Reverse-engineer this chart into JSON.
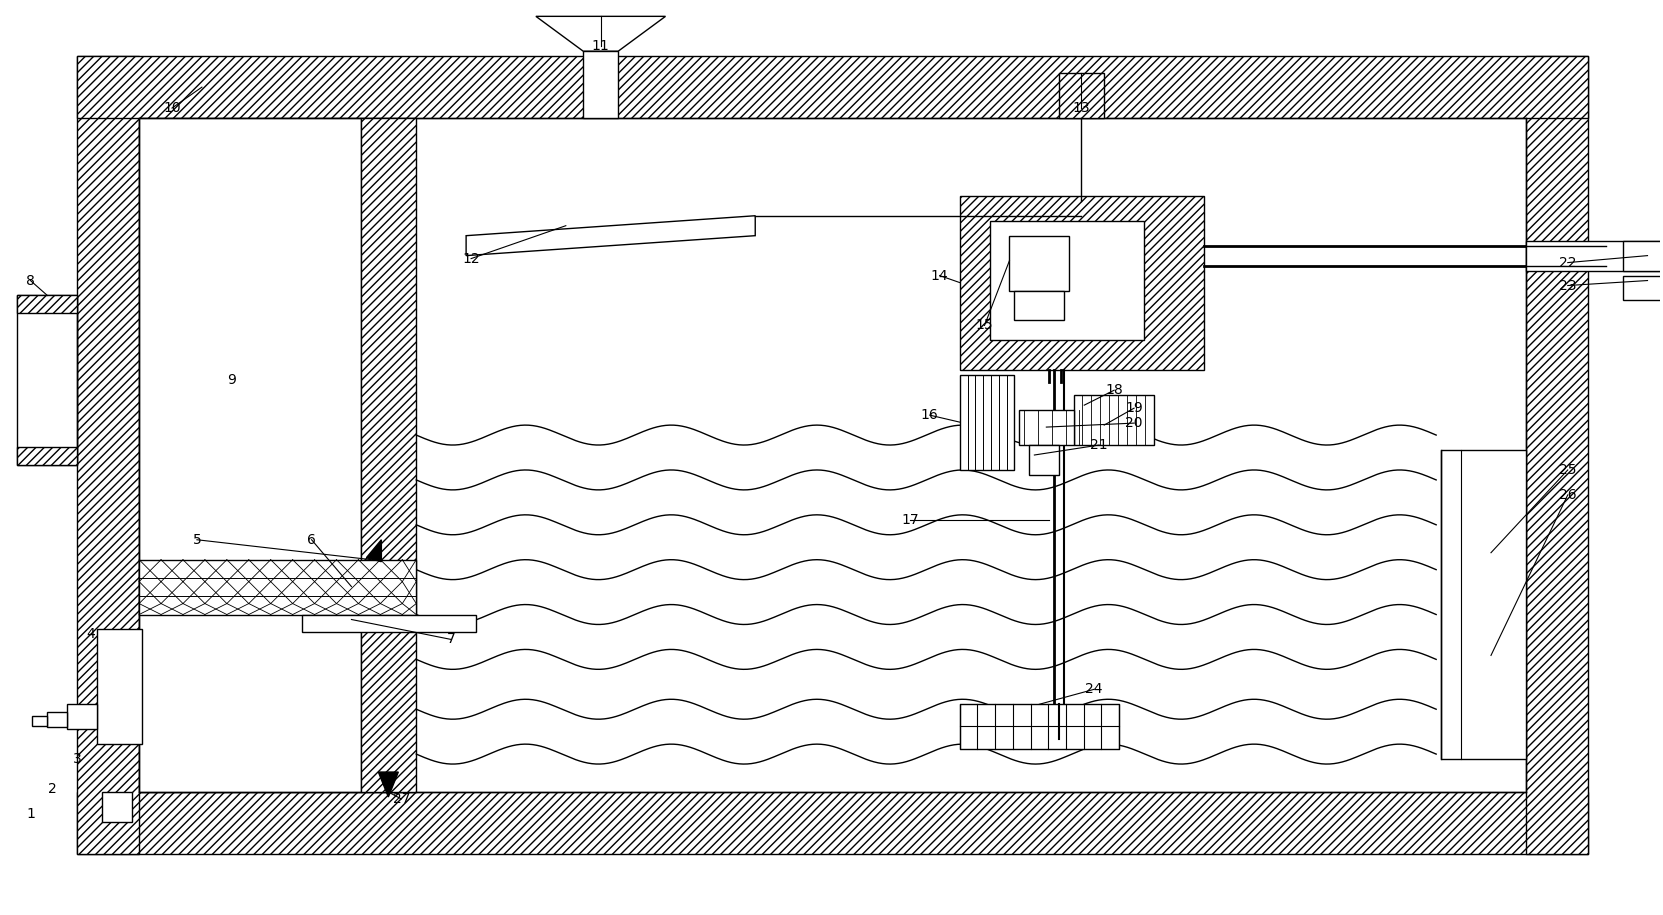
{
  "bg_color": "#ffffff",
  "lc": "#000000",
  "lw": 1.0,
  "fig_w": 16.63,
  "fig_h": 9.15,
  "hatch_density": "////",
  "label_fs": 10
}
